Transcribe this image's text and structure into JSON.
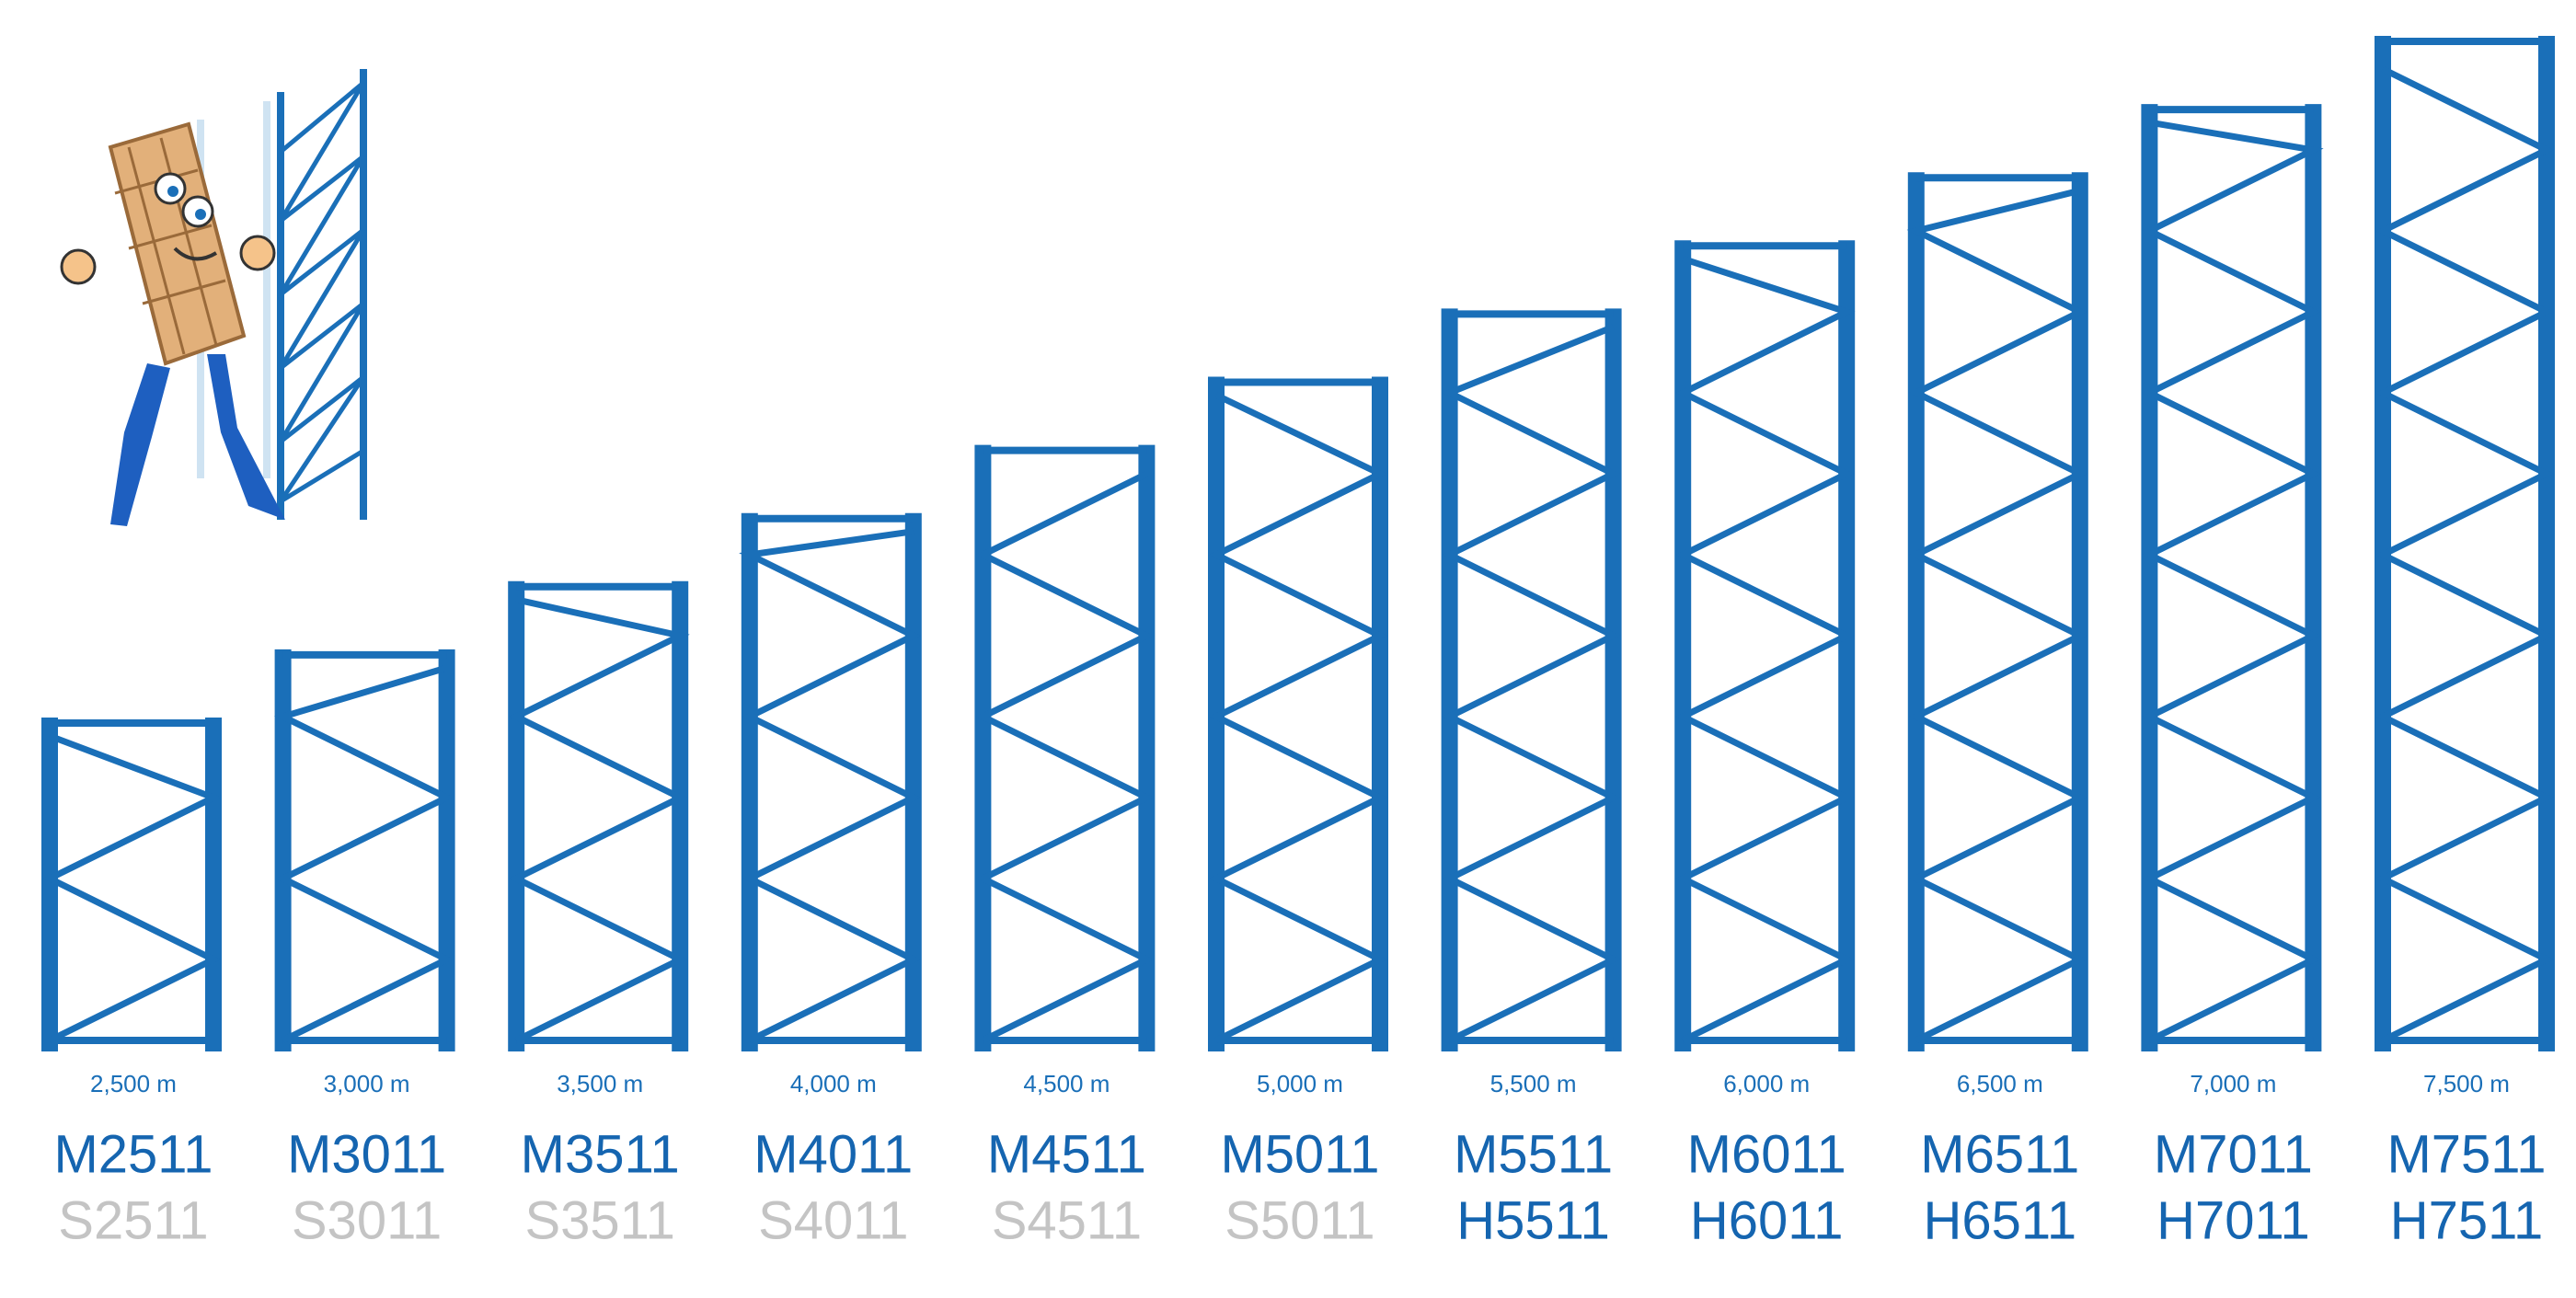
{
  "frames": [
    {
      "height": "2,500 m",
      "model": "M2511",
      "variant": "S2511",
      "variant_color": "#c4c4c4"
    },
    {
      "height": "3,000 m",
      "model": "M3011",
      "variant": "S3011",
      "variant_color": "#c4c4c4"
    },
    {
      "height": "3,500 m",
      "model": "M3511",
      "variant": "S3511",
      "variant_color": "#c4c4c4"
    },
    {
      "height": "4,000 m",
      "model": "M4011",
      "variant": "S4011",
      "variant_color": "#c4c4c4"
    },
    {
      "height": "4,500 m",
      "model": "M4511",
      "variant": "S4511",
      "variant_color": "#c4c4c4"
    },
    {
      "height": "5,000 m",
      "model": "M5011",
      "variant": "S5011",
      "variant_color": "#c4c4c4"
    },
    {
      "height": "5,500 m",
      "model": "M5511",
      "variant": "H5511",
      "variant_color": "#1565b0"
    },
    {
      "height": "6,000 m",
      "model": "M6011",
      "variant": "H6011",
      "variant_color": "#1565b0"
    },
    {
      "height": "6,500 m",
      "model": "M6511",
      "variant": "H6511",
      "variant_color": "#1565b0"
    },
    {
      "height": "7,000 m",
      "model": "M7011",
      "variant": "H7011",
      "variant_color": "#1565b0"
    },
    {
      "height": "7,500 m",
      "model": "M7511",
      "variant": "H7511",
      "variant_color": "#1565b0"
    }
  ]
}
